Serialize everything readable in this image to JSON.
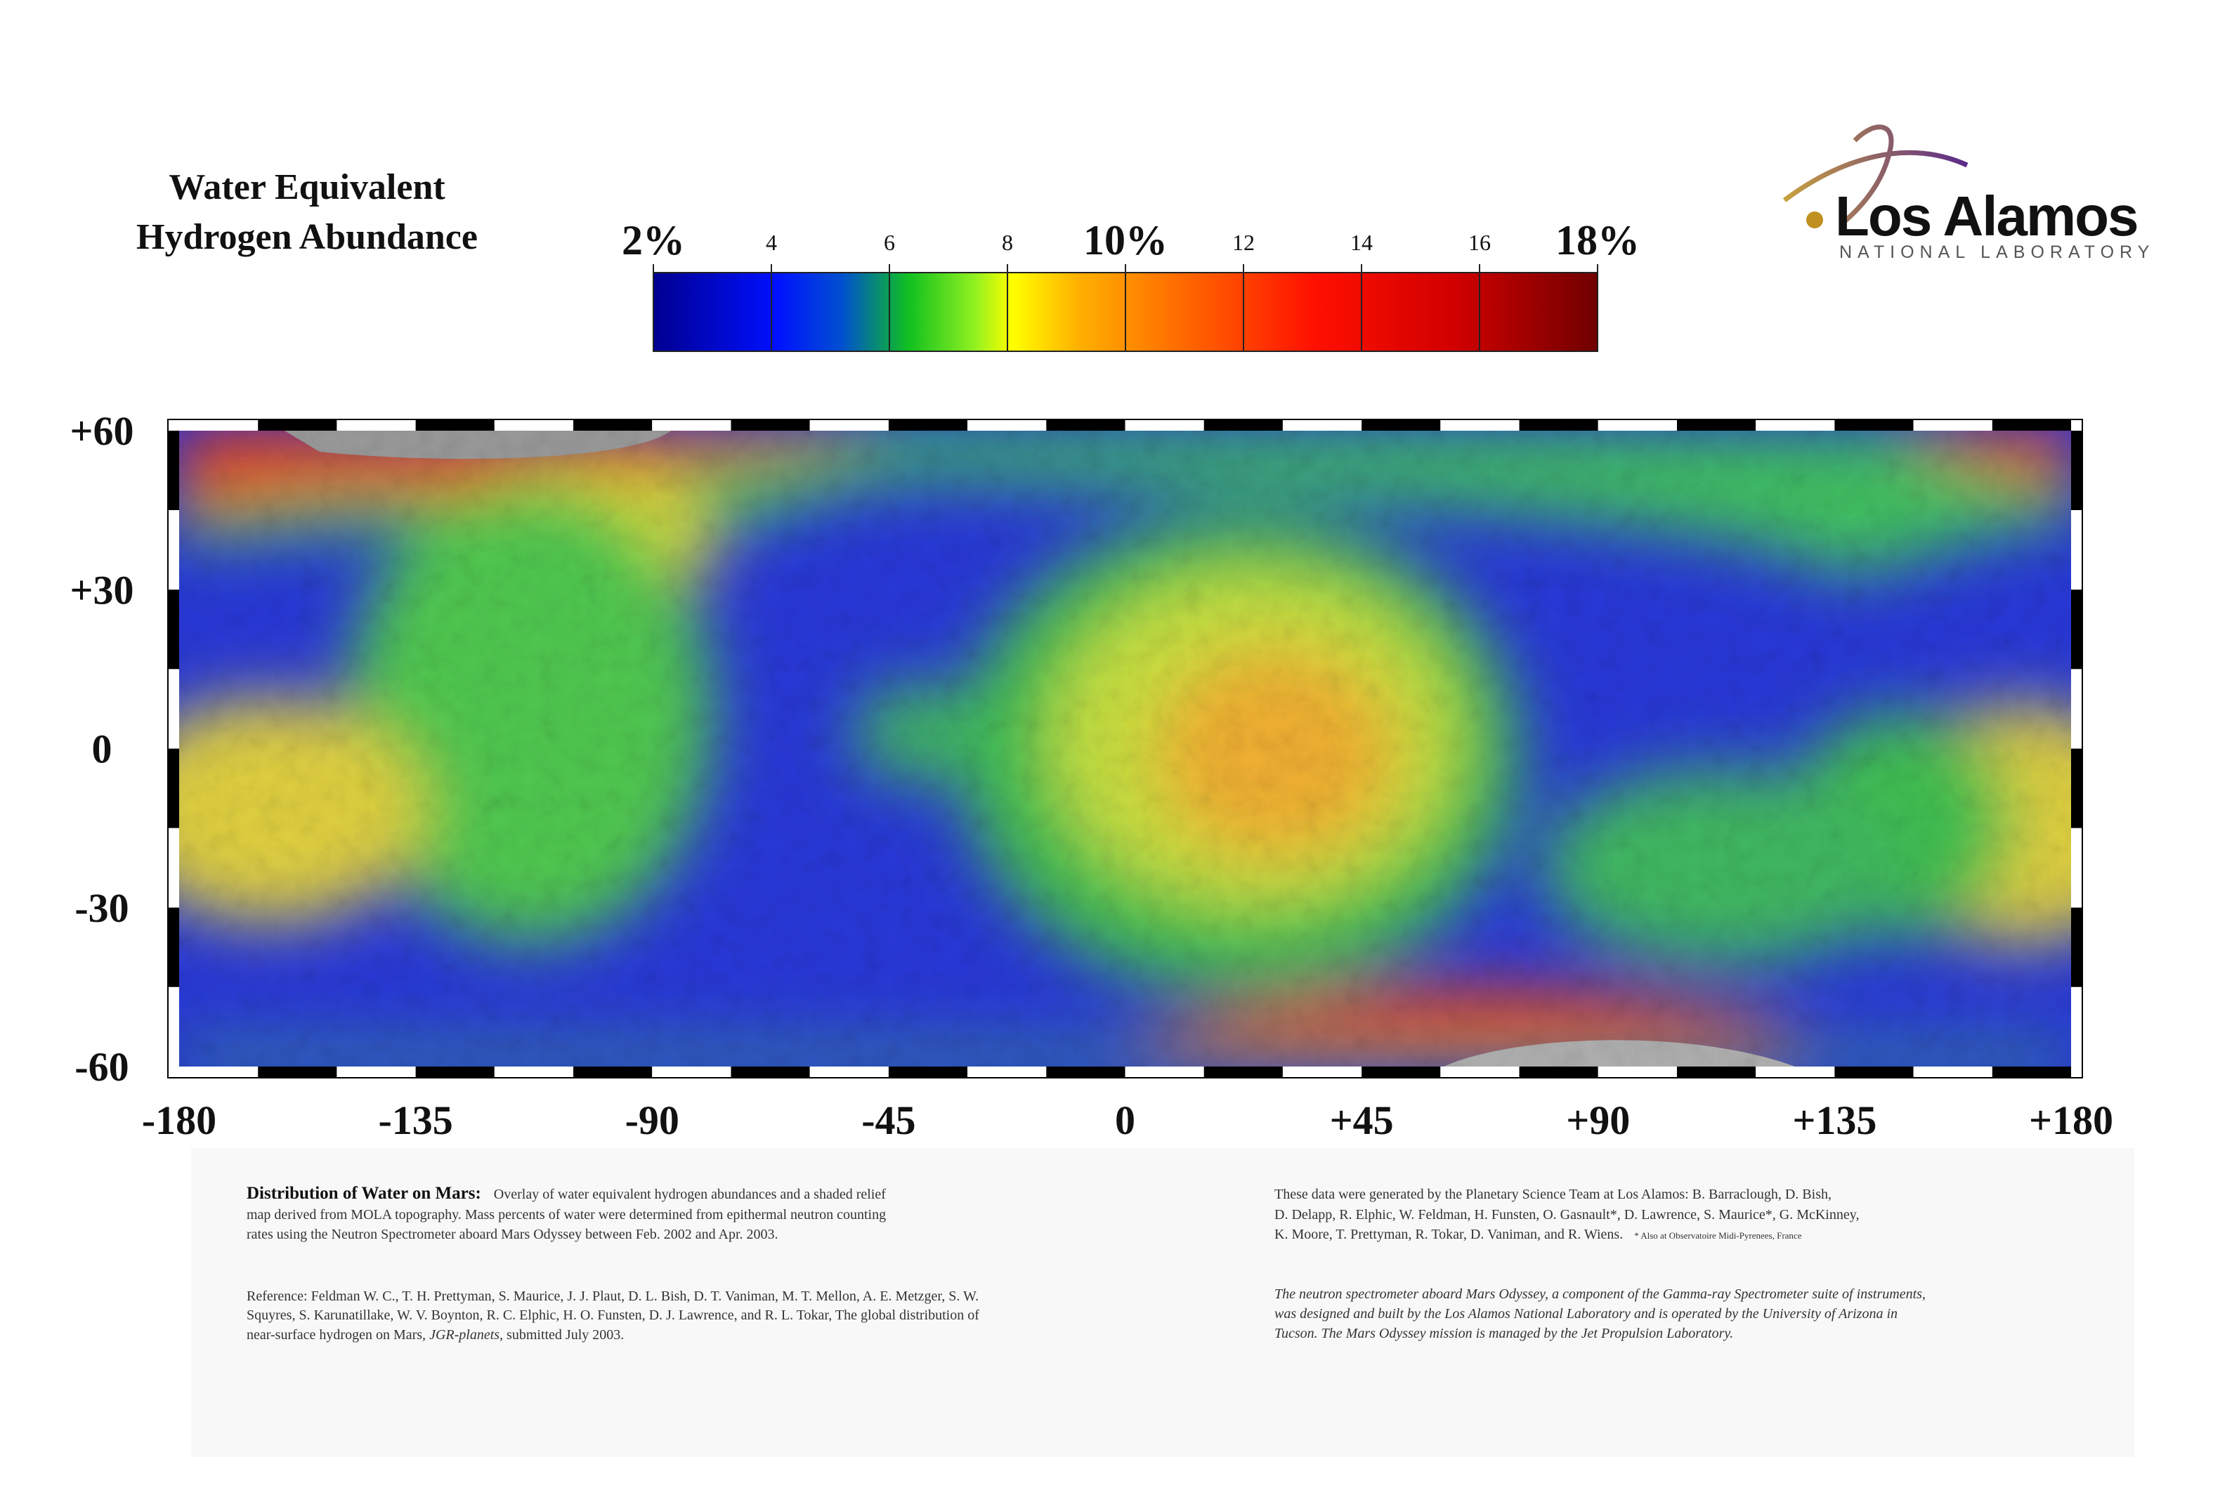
{
  "title": {
    "line1": "Water Equivalent",
    "line2": "Hydrogen Abundance"
  },
  "colorbar": {
    "labels": [
      "2%",
      "4",
      "6",
      "8",
      "10%",
      "12",
      "14",
      "16",
      "18%"
    ]
  },
  "logo": {
    "name": "Los Alamos",
    "subtitle": "NATIONAL LABORATORY"
  },
  "map": {
    "y_labels": [
      "+60",
      "+30",
      "0",
      "-30",
      "-60"
    ],
    "x_labels": [
      "-180",
      "-135",
      "-90",
      "-45",
      "0",
      "+45",
      "+90",
      "+135",
      "+180"
    ]
  },
  "notes": {
    "left": {
      "heading": "Distribution of Water on Mars:",
      "lines": [
        "Overlay of water equivalent hydrogen abundances and a shaded relief",
        "map derived from MOLA topography. Mass percents of water were determined from epithermal neutron counting",
        "rates using the Neutron Spectrometer aboard Mars Odyssey between Feb. 2002 and Apr. 2003."
      ],
      "reference": [
        "Reference: Feldman W. C., T. H. Prettyman, S. Maurice, J. J. Plaut, D. L. Bish, D. T. Vaniman, M. T. Mellon, A. E. Metzger, S. W.",
        "Squyres, S. Karunatillake, W. V. Boynton, R. C. Elphic, H. O. Funsten, D. J. Lawrence, and R. L. Tokar, The global distribution of"
      ],
      "reference_last": [
        "near-surface hydrogen on Mars, ",
        "JGR-planets",
        ", submitted July 2003."
      ]
    },
    "right": {
      "lines": [
        "These data were generated by the Planetary Science Team at Los Alamos: B. Barraclough, D. Bish,",
        "D. Delapp, R. Elphic, W. Feldman, H. Funsten, O. Gasnault*, D. Lawrence, S. Maurice*, G. McKinney,",
        "K. Moore, T. Prettyman, R. Tokar, D. Vaniman, and R. Wiens."
      ],
      "footnote": "* Also at Observatoire Midi-Pyrenees, France",
      "italic": [
        "The neutron spectrometer aboard Mars Odyssey, a component of  the Gamma-ray Spectrometer suite of  instruments,",
        "was designed and built by the Los Alamos National Laboratory and is operated by the University of  Arizona in",
        "Tucson. The Mars Odyssey mission is managed by the Jet Propulsion Laboratory."
      ]
    }
  }
}
